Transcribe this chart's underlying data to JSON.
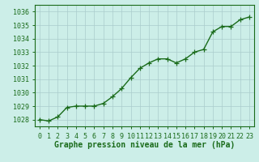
{
  "x": [
    0,
    1,
    2,
    3,
    4,
    5,
    6,
    7,
    8,
    9,
    10,
    11,
    12,
    13,
    14,
    15,
    16,
    17,
    18,
    19,
    20,
    21,
    22,
    23
  ],
  "y": [
    1028.0,
    1027.9,
    1028.2,
    1028.9,
    1029.0,
    1029.0,
    1029.0,
    1029.2,
    1029.7,
    1030.3,
    1031.1,
    1031.8,
    1032.2,
    1032.5,
    1032.5,
    1032.2,
    1032.5,
    1033.0,
    1033.2,
    1034.5,
    1034.9,
    1034.9,
    1035.4,
    1035.6
  ],
  "ylim": [
    1027.5,
    1036.5
  ],
  "yticks": [
    1028,
    1029,
    1030,
    1031,
    1032,
    1033,
    1034,
    1035,
    1036
  ],
  "xlim": [
    -0.5,
    23.5
  ],
  "xticks": [
    0,
    1,
    2,
    3,
    4,
    5,
    6,
    7,
    8,
    9,
    10,
    11,
    12,
    13,
    14,
    15,
    16,
    17,
    18,
    19,
    20,
    21,
    22,
    23
  ],
  "xlabel": "Graphe pression niveau de la mer (hPa)",
  "line_color": "#1a6b1a",
  "marker": "+",
  "marker_size": 4,
  "line_width": 1.0,
  "bg_color": "#cceee8",
  "grid_color": "#aacccc",
  "tick_color": "#1a6b1a",
  "xlabel_color": "#1a6b1a",
  "xlabel_fontsize": 7,
  "tick_fontsize": 6,
  "spine_color": "#1a6b1a"
}
